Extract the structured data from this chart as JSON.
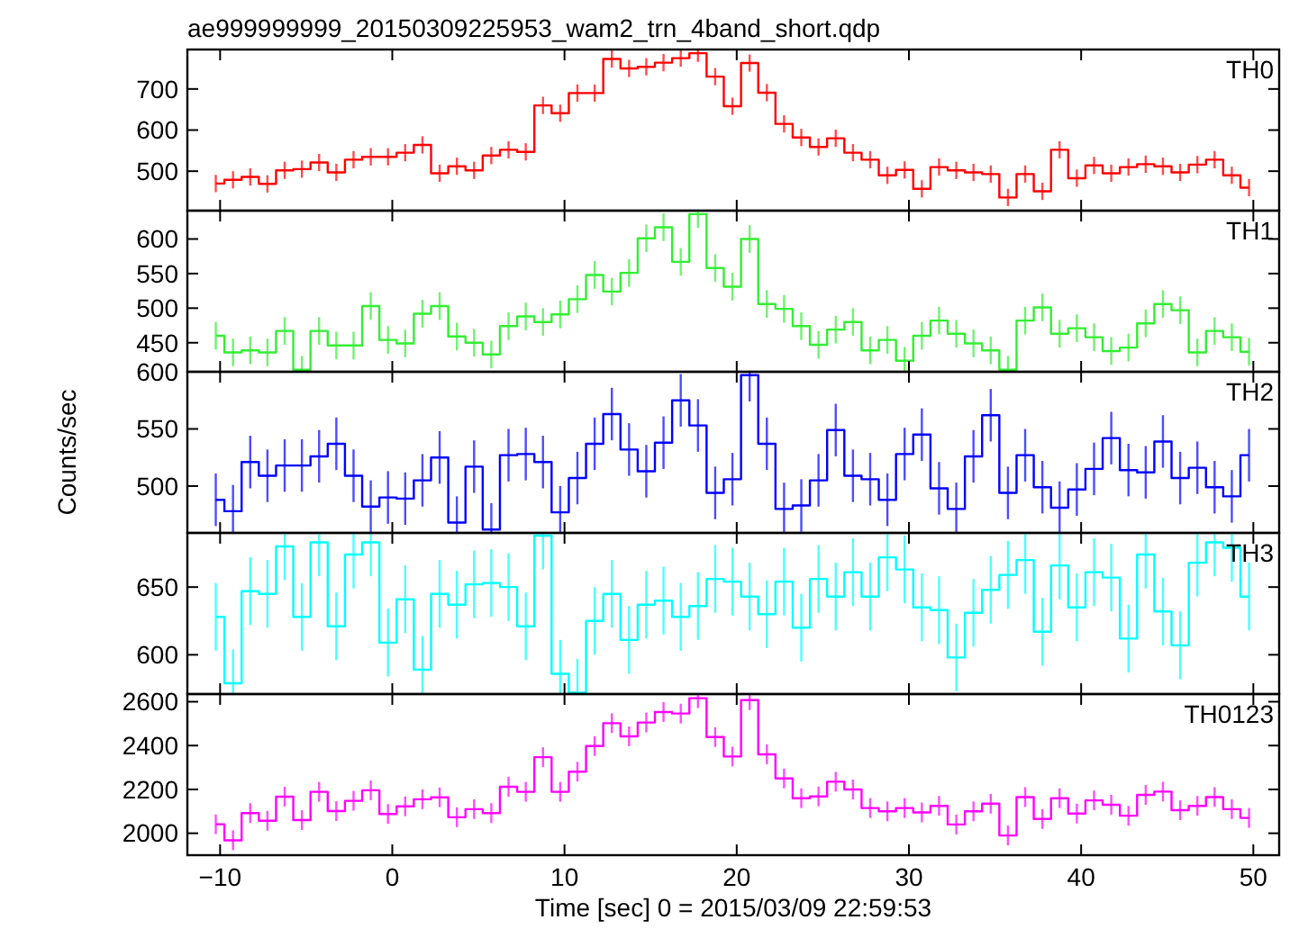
{
  "chart_data": [
    {
      "type": "step",
      "title": "ae999999999_20150309225953_wam2_trn_4band_short.qdp",
      "xlim": [
        -11.9,
        51.5
      ],
      "xticks": [
        -10,
        0,
        10,
        20,
        30,
        40,
        50
      ],
      "ylim": [
        404,
        796
      ],
      "yticks": [
        500,
        600,
        700
      ],
      "tick_labels": "y",
      "series": [
        {
          "name": "TH0",
          "color": "#ff0000",
          "x": [
            -10.25,
            -9.25,
            -8.25,
            -7.25,
            -6.25,
            -5.25,
            -4.25,
            -3.25,
            -2.25,
            -1.25,
            -0.25,
            0.75,
            1.75,
            2.75,
            3.75,
            4.75,
            5.75,
            6.75,
            7.75,
            8.75,
            9.75,
            10.75,
            11.75,
            12.75,
            13.75,
            14.75,
            15.75,
            16.75,
            17.75,
            18.75,
            19.75,
            20.75,
            21.75,
            22.75,
            23.75,
            24.75,
            25.75,
            26.75,
            27.75,
            28.75,
            29.75,
            30.75,
            31.75,
            32.75,
            33.75,
            34.75,
            35.75,
            36.75,
            37.75,
            38.75,
            39.75,
            40.75,
            41.75,
            42.75,
            43.75,
            44.75,
            45.75,
            46.75,
            47.75,
            48.75,
            49.75
          ],
          "values": [
            470,
            479,
            486,
            469,
            502,
            505,
            521,
            497,
            528,
            535,
            535,
            545,
            564,
            495,
            512,
            502,
            538,
            552,
            547,
            660,
            641,
            690,
            690,
            773,
            750,
            754,
            764,
            775,
            787,
            730,
            658,
            763,
            691,
            615,
            582,
            559,
            580,
            545,
            528,
            490,
            503,
            457,
            510,
            502,
            497,
            493,
            436,
            493,
            451,
            552,
            483,
            514,
            495,
            510,
            517,
            512,
            497,
            516,
            528,
            490,
            460
          ],
          "errors": [
            21,
            21,
            21,
            21,
            21,
            21,
            21,
            21,
            21,
            21,
            21,
            21,
            21,
            21,
            21,
            21,
            21,
            21,
            21,
            21,
            21,
            21,
            21,
            21,
            21,
            21,
            21,
            21,
            21,
            21,
            21,
            21,
            21,
            21,
            21,
            21,
            21,
            21,
            21,
            21,
            21,
            21,
            21,
            21,
            21,
            21,
            21,
            21,
            21,
            21,
            21,
            21,
            21,
            21,
            21,
            21,
            21,
            21,
            21,
            21,
            21
          ]
        }
      ]
    },
    {
      "type": "step",
      "xlim": [
        -11.9,
        51.5
      ],
      "xticks": [
        -10,
        0,
        10,
        20,
        30,
        40,
        50
      ],
      "ylim": [
        408,
        641
      ],
      "yticks": [
        450,
        500,
        550,
        600
      ],
      "tick_labels": "y",
      "series": [
        {
          "name": "TH1",
          "color": "#33ee33",
          "x": [
            -10.25,
            -9.25,
            -8.25,
            -7.25,
            -6.25,
            -5.25,
            -4.25,
            -3.25,
            -2.25,
            -1.25,
            -0.25,
            0.75,
            1.75,
            2.75,
            3.75,
            4.75,
            5.75,
            6.75,
            7.75,
            8.75,
            9.75,
            10.75,
            11.75,
            12.75,
            13.75,
            14.75,
            15.75,
            16.75,
            17.75,
            18.75,
            19.75,
            20.75,
            21.75,
            22.75,
            23.75,
            24.75,
            25.75,
            26.75,
            27.75,
            28.75,
            29.75,
            30.75,
            31.75,
            32.75,
            33.75,
            34.75,
            35.75,
            36.75,
            37.75,
            38.75,
            39.75,
            40.75,
            41.75,
            42.75,
            43.75,
            44.75,
            45.75,
            46.75,
            47.75,
            48.75,
            49.75
          ],
          "values": [
            460,
            436,
            439,
            436,
            467,
            411,
            467,
            446,
            446,
            503,
            454,
            449,
            492,
            503,
            459,
            450,
            433,
            474,
            488,
            480,
            491,
            513,
            548,
            524,
            551,
            601,
            617,
            567,
            636,
            558,
            531,
            600,
            506,
            499,
            474,
            447,
            469,
            480,
            439,
            454,
            424,
            460,
            482,
            463,
            449,
            439,
            411,
            482,
            501,
            463,
            471,
            458,
            438,
            443,
            478,
            506,
            497,
            436,
            467,
            458,
            437
          ],
          "errors": [
            20,
            20,
            20,
            20,
            20,
            20,
            20,
            20,
            20,
            20,
            20,
            20,
            20,
            20,
            20,
            20,
            20,
            20,
            20,
            20,
            20,
            20,
            20,
            20,
            20,
            20,
            20,
            20,
            20,
            20,
            20,
            20,
            20,
            20,
            20,
            20,
            20,
            20,
            20,
            20,
            20,
            20,
            20,
            20,
            20,
            20,
            20,
            20,
            20,
            20,
            20,
            20,
            20,
            20,
            20,
            20,
            20,
            20,
            20,
            20,
            20
          ]
        }
      ]
    },
    {
      "type": "step",
      "ylabel": "Counts/sec",
      "xlim": [
        -11.9,
        51.5
      ],
      "xticks": [
        -10,
        0,
        10,
        20,
        30,
        40,
        50
      ],
      "ylim": [
        459,
        600
      ],
      "yticks": [
        500,
        550,
        600
      ],
      "tick_labels": "y",
      "series": [
        {
          "name": "TH2",
          "color": "#0000ff",
          "x": [
            -10.25,
            -9.25,
            -8.25,
            -7.25,
            -6.25,
            -5.25,
            -4.25,
            -3.25,
            -2.25,
            -1.25,
            -0.25,
            0.75,
            1.75,
            2.75,
            3.75,
            4.75,
            5.75,
            6.75,
            7.75,
            8.75,
            9.75,
            10.75,
            11.75,
            12.75,
            13.75,
            14.75,
            15.75,
            16.75,
            17.75,
            18.75,
            19.75,
            20.75,
            21.75,
            22.75,
            23.75,
            24.75,
            25.75,
            26.75,
            27.75,
            28.75,
            29.75,
            30.75,
            31.75,
            32.75,
            33.75,
            34.75,
            35.75,
            36.75,
            37.75,
            38.75,
            39.75,
            40.75,
            41.75,
            42.75,
            43.75,
            44.75,
            45.75,
            46.75,
            47.75,
            48.75,
            49.75
          ],
          "values": [
            488,
            478,
            521,
            509,
            518,
            518,
            526,
            537,
            509,
            482,
            490,
            489,
            505,
            525,
            468,
            517,
            462,
            527,
            528,
            521,
            477,
            507,
            537,
            563,
            532,
            513,
            538,
            575,
            553,
            494,
            506,
            597,
            537,
            480,
            483,
            505,
            549,
            509,
            506,
            488,
            528,
            545,
            498,
            480,
            526,
            562,
            494,
            527,
            499,
            481,
            497,
            515,
            542,
            514,
            512,
            539,
            507,
            516,
            499,
            491,
            527
          ],
          "errors": [
            23,
            23,
            23,
            23,
            23,
            23,
            23,
            23,
            23,
            23,
            23,
            23,
            23,
            23,
            23,
            23,
            23,
            23,
            23,
            23,
            23,
            23,
            23,
            23,
            23,
            23,
            23,
            23,
            23,
            23,
            23,
            23,
            23,
            23,
            23,
            23,
            23,
            23,
            23,
            23,
            23,
            23,
            23,
            23,
            23,
            23,
            23,
            23,
            23,
            23,
            23,
            23,
            23,
            23,
            23,
            23,
            23,
            23,
            23,
            23,
            23
          ]
        }
      ]
    },
    {
      "type": "step",
      "xlim": [
        -11.9,
        51.5
      ],
      "xticks": [
        -10,
        0,
        10,
        20,
        30,
        40,
        50
      ],
      "ylim": [
        571,
        690
      ],
      "yticks": [
        600,
        650
      ],
      "tick_labels": "y",
      "series": [
        {
          "name": "TH3",
          "color": "#00ffff",
          "x": [
            -10.25,
            -9.25,
            -8.25,
            -7.25,
            -6.25,
            -5.25,
            -4.25,
            -3.25,
            -2.25,
            -1.25,
            -0.25,
            0.75,
            1.75,
            2.75,
            3.75,
            4.75,
            5.75,
            6.75,
            7.75,
            8.75,
            9.75,
            10.75,
            11.75,
            12.75,
            13.75,
            14.75,
            15.75,
            16.75,
            17.75,
            18.75,
            19.75,
            20.75,
            21.75,
            22.75,
            23.75,
            24.75,
            25.75,
            26.75,
            27.75,
            28.75,
            29.75,
            30.75,
            31.75,
            32.75,
            33.75,
            34.75,
            35.75,
            36.75,
            37.75,
            38.75,
            39.75,
            40.75,
            41.75,
            42.75,
            43.75,
            44.75,
            45.75,
            46.75,
            47.75,
            48.75,
            49.75
          ],
          "values": [
            628,
            579,
            647,
            645,
            680,
            628,
            683,
            621,
            674,
            683,
            609,
            641,
            589,
            645,
            637,
            652,
            653,
            650,
            621,
            688,
            586,
            572,
            625,
            645,
            611,
            637,
            640,
            628,
            636,
            656,
            654,
            643,
            630,
            654,
            620,
            656,
            643,
            661,
            643,
            672,
            663,
            635,
            633,
            598,
            631,
            648,
            659,
            670,
            617,
            666,
            635,
            661,
            657,
            612,
            674,
            632,
            607,
            668,
            683,
            679,
            643
          ],
          "errors": [
            25,
            25,
            25,
            25,
            25,
            25,
            25,
            25,
            25,
            25,
            25,
            25,
            25,
            25,
            25,
            25,
            25,
            25,
            25,
            25,
            25,
            25,
            25,
            25,
            25,
            25,
            25,
            25,
            25,
            25,
            25,
            25,
            25,
            25,
            25,
            25,
            25,
            25,
            25,
            25,
            25,
            25,
            25,
            25,
            25,
            25,
            25,
            25,
            25,
            25,
            25,
            25,
            25,
            25,
            25,
            25,
            25,
            25,
            25,
            25,
            25
          ]
        }
      ]
    },
    {
      "type": "step",
      "xlabel": "Time [sec] 0 = 2015/03/09 22:59:53",
      "xlim": [
        -11.9,
        51.5
      ],
      "xticks": [
        -10,
        0,
        10,
        20,
        30,
        40,
        50
      ],
      "ylim": [
        1900,
        2635
      ],
      "yticks": [
        2000,
        2200,
        2400,
        2600
      ],
      "series": [
        {
          "name": "TH0123",
          "color": "#ff00ff",
          "x": [
            -10.25,
            -9.25,
            -8.25,
            -7.25,
            -6.25,
            -5.25,
            -4.25,
            -3.25,
            -2.25,
            -1.25,
            -0.25,
            0.75,
            1.75,
            2.75,
            3.75,
            4.75,
            5.75,
            6.75,
            7.75,
            8.75,
            9.75,
            10.75,
            11.75,
            12.75,
            13.75,
            14.75,
            15.75,
            16.75,
            17.75,
            18.75,
            19.75,
            20.75,
            21.75,
            22.75,
            23.75,
            24.75,
            25.75,
            26.75,
            27.75,
            28.75,
            29.75,
            30.75,
            31.75,
            32.75,
            33.75,
            34.75,
            35.75,
            36.75,
            37.75,
            38.75,
            39.75,
            40.75,
            41.75,
            42.75,
            43.75,
            44.75,
            45.75,
            46.75,
            47.75,
            48.75,
            49.75
          ],
          "values": [
            2041,
            1968,
            2092,
            2057,
            2167,
            2060,
            2189,
            2101,
            2148,
            2196,
            2088,
            2123,
            2155,
            2164,
            2073,
            2110,
            2092,
            2212,
            2189,
            2347,
            2189,
            2281,
            2398,
            2502,
            2442,
            2505,
            2553,
            2546,
            2616,
            2439,
            2350,
            2607,
            2360,
            2250,
            2160,
            2168,
            2235,
            2200,
            2115,
            2100,
            2115,
            2095,
            2125,
            2040,
            2100,
            2135,
            1990,
            2165,
            2065,
            2160,
            2090,
            2150,
            2130,
            2080,
            2175,
            2190,
            2105,
            2125,
            2165,
            2110,
            2070
          ],
          "errors": [
            45,
            45,
            45,
            45,
            45,
            45,
            45,
            45,
            45,
            45,
            45,
            45,
            45,
            45,
            45,
            45,
            45,
            45,
            45,
            45,
            45,
            45,
            45,
            45,
            45,
            45,
            45,
            45,
            45,
            45,
            45,
            45,
            45,
            45,
            45,
            45,
            45,
            45,
            45,
            45,
            45,
            45,
            45,
            45,
            45,
            45,
            45,
            45,
            45,
            45,
            45,
            45,
            45,
            45,
            45,
            45,
            45,
            45,
            45,
            45,
            45
          ]
        }
      ]
    }
  ]
}
